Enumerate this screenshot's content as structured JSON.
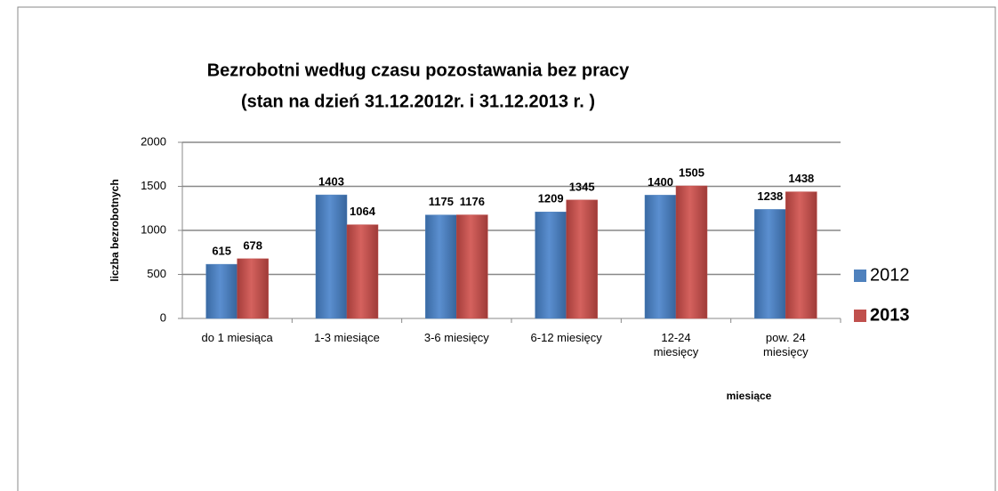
{
  "chart_data": {
    "type": "bar",
    "title": "Bezrobotni według czasu pozostawania bez pracy",
    "subtitle": "(stan na dzień 31.12.2012r. i 31.12.2013 r. )",
    "y_label": "liczba bezrobotnych",
    "x_label": "miesiące",
    "categories": [
      "do 1 miesiąca",
      "1-3 miesiące",
      "3-6 miesięcy",
      "6-12 miesięcy",
      "12-24\nmiesięcy",
      "pow. 24\nmiesięcy"
    ],
    "series": [
      {
        "name": "2012",
        "color": "#4f81bd",
        "values": [
          615,
          1403,
          1175,
          1209,
          1400,
          1238
        ]
      },
      {
        "name": "2013",
        "color": "#c0504d",
        "values": [
          678,
          1064,
          1176,
          1345,
          1505,
          1438
        ]
      }
    ],
    "ylim": [
      0,
      2000
    ],
    "yticks": [
      0,
      500,
      1000,
      1500,
      2000
    ],
    "grid": true,
    "legend": "right"
  }
}
